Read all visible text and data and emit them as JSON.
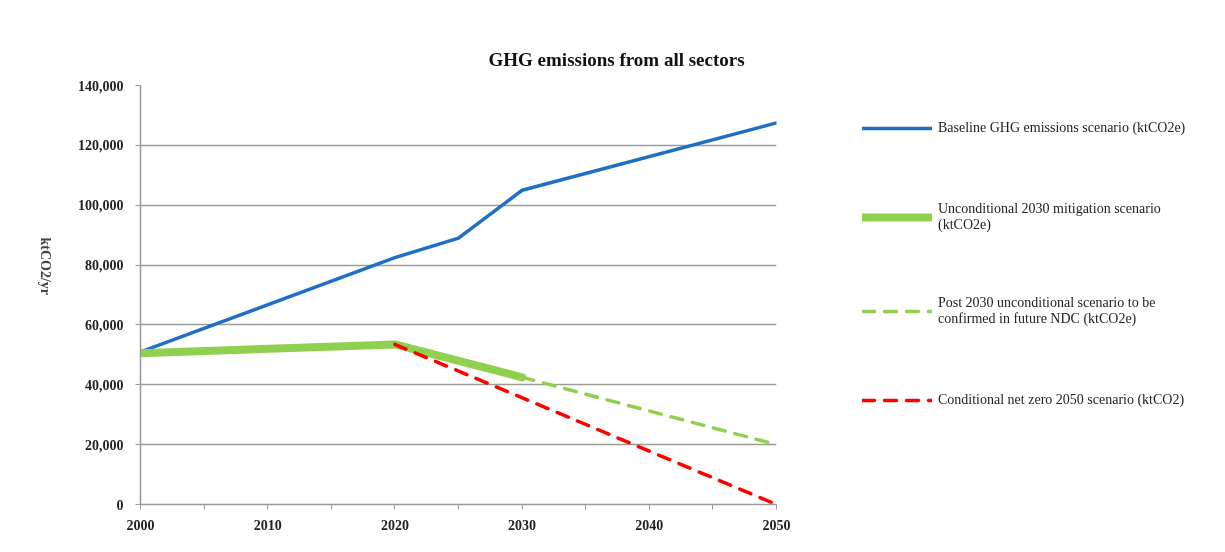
{
  "chart_data": {
    "type": "line",
    "title": "GHG emissions  from all sectors",
    "ylabel": "ktCO2/yr",
    "xlim": [
      2000,
      2050
    ],
    "xticks": [
      2000,
      {
        "value": 2005,
        "label": null
      },
      2010,
      {
        "value": 2015,
        "label": null
      },
      2020,
      {
        "value": 2025,
        "label": null
      },
      2030,
      {
        "value": 2035,
        "label": null
      },
      2040,
      {
        "value": 2045,
        "label": null
      },
      2050
    ],
    "ylim": [
      0,
      140000
    ],
    "yticks": [
      0,
      {
        "value": 20000,
        "label": "20,000"
      },
      {
        "value": 40000,
        "label": "40,000"
      },
      {
        "value": 60000,
        "label": "60,000"
      },
      {
        "value": 80000,
        "label": "80,000"
      },
      {
        "value": 100000,
        "label": "100,000"
      },
      {
        "value": 120000,
        "label": "120,000"
      },
      {
        "value": 140000,
        "label": "140,000"
      }
    ],
    "grid": "y",
    "legend": "right",
    "marker": "none",
    "series": [
      {
        "name": "Baseline GHG emissions scenario (ktCO2e)",
        "color": "#1f6fc4",
        "line_style": "solid",
        "x": [
          2000,
          2020,
          2025,
          2030,
          2050
        ],
        "values": [
          51000,
          82500,
          89000,
          105000,
          127500
        ]
      },
      {
        "name": "Unconditional 2030 mitigation scenario (ktCO2e)",
        "color": "#8fd14f",
        "line_style": "solid",
        "x": [
          2000,
          2020,
          2030
        ],
        "values": [
          50500,
          53500,
          42500
        ]
      },
      {
        "name": "Post 2030 unconditional scenario to be confirmed in future NDC (ktCO2e)",
        "color": "#8fd14f",
        "line_style": "dashed",
        "x": [
          2030,
          2050
        ],
        "values": [
          42500,
          20000
        ]
      },
      {
        "name": "Conditional net zero 2050 scenario (ktCO2)",
        "color": "#ff0000",
        "line_style": "dashed",
        "x": [
          2020,
          2050
        ],
        "values": [
          53500,
          0
        ]
      }
    ]
  }
}
